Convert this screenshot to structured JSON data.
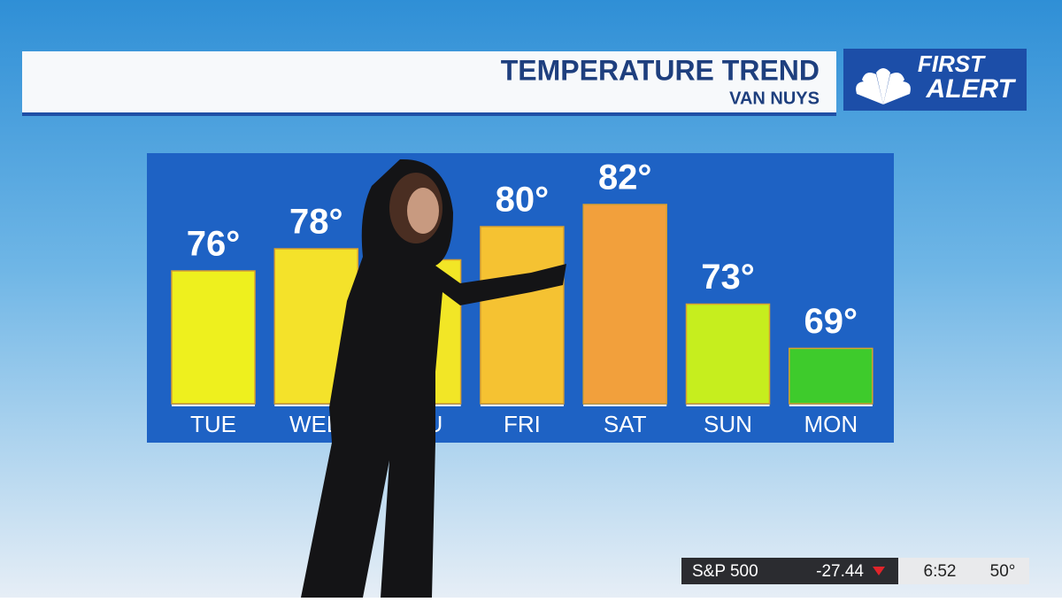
{
  "chart_data": {
    "type": "bar",
    "title": "TEMPERATURE TREND",
    "subtitle": "VAN NUYS",
    "categories": [
      "TUE",
      "WED",
      "THU",
      "FRI",
      "SAT",
      "SUN",
      "MON"
    ],
    "values": [
      76,
      78,
      77,
      80,
      82,
      73,
      69
    ],
    "value_labels": [
      "76°",
      "78°",
      null,
      "80°",
      "82°",
      "73°",
      "69°"
    ],
    "colors": [
      "#eef01e",
      "#f4e22a",
      "#f2e626",
      "#f5c232",
      "#f2a03c",
      "#c6ee1e",
      "#3ecb2c"
    ],
    "ylim": [
      64,
      86
    ]
  },
  "logo": {
    "line1": "FIRST",
    "line2": "ALERT"
  },
  "ticker": {
    "index": "S&P 500",
    "change": "-27.44",
    "time": "6:52",
    "temp": "50°"
  }
}
